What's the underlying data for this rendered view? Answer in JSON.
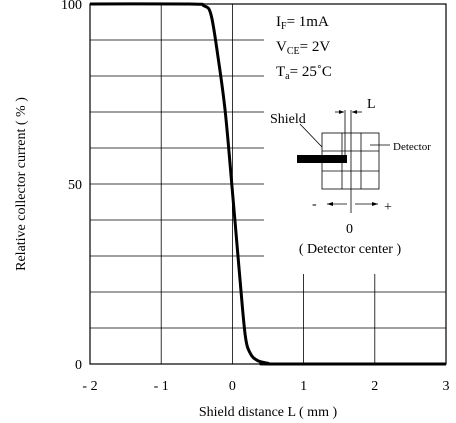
{
  "chart_data": {
    "type": "line",
    "xlabel": "Shield distance L ( mm )",
    "ylabel": "Relative collector current ( % )",
    "xlim": [
      -2,
      3
    ],
    "ylim": [
      0,
      100
    ],
    "x_ticks": [
      "- 2",
      "- 1",
      "0",
      "1",
      "2",
      "3"
    ],
    "y_ticks": [
      "0",
      "50",
      "100"
    ],
    "grid": true,
    "series": [
      {
        "x": [
          -2.0,
          -0.6,
          -0.4,
          -0.3,
          -0.2,
          -0.1,
          0.0,
          0.1,
          0.18,
          0.25,
          0.35,
          0.5,
          0.6,
          3.0
        ],
        "y": [
          100,
          100,
          99.5,
          97,
          85,
          70,
          48,
          25,
          8,
          3,
          1,
          0.2,
          0,
          0
        ]
      }
    ],
    "conditions": {
      "if_label": "I",
      "if_sub": "F",
      "if_value": "= 1mA",
      "vce_label": "V",
      "vce_sub": "CE",
      "vce_value": "= 2V",
      "ta_label": "T",
      "ta_sub": "a",
      "ta_value": "= 25˚C"
    },
    "inset": {
      "shield_label": "Shield",
      "detector_label": "Detector",
      "l_label": "L",
      "minus_label": "-",
      "plus_label": "+",
      "zero_label": "0",
      "center_label": "( Detector center )"
    }
  }
}
